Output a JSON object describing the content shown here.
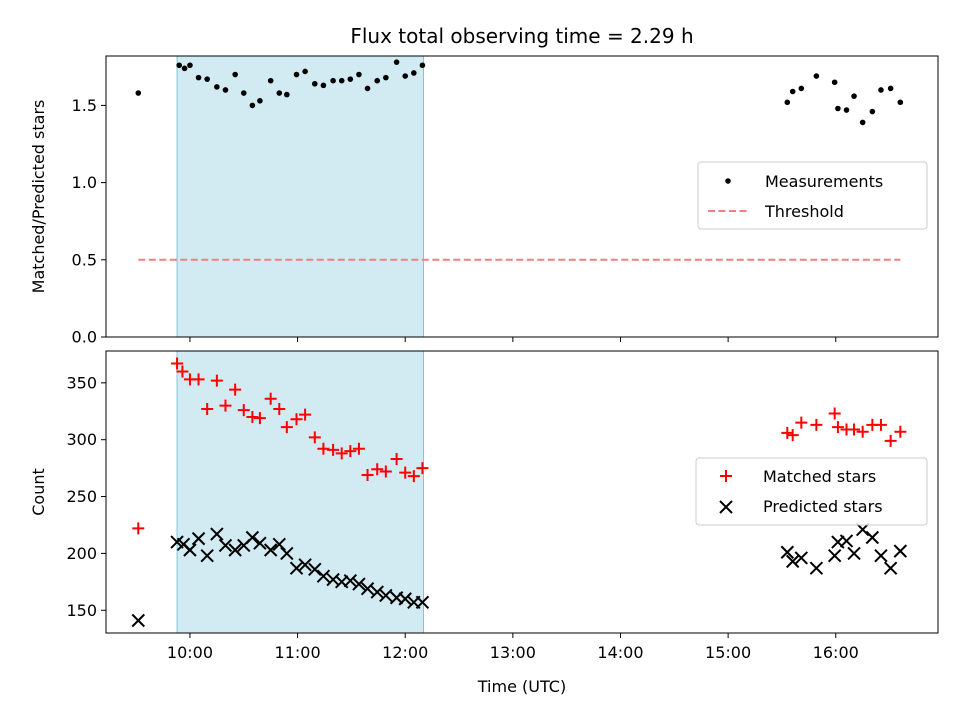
{
  "chart_data": {
    "type": "scatter",
    "title": "Flux total observing time = 2.29 h",
    "xlabel": "Time (UTC)",
    "xlim": [
      9.22,
      16.95
    ],
    "xticks": [
      10,
      11,
      12,
      13,
      14,
      15,
      16
    ],
    "xtick_labels": [
      "10:00",
      "11:00",
      "12:00",
      "13:00",
      "14:00",
      "15:00",
      "16:00"
    ],
    "shaded_span": [
      9.88,
      12.17
    ],
    "shade_color": "#add8e6",
    "top": {
      "ylabel": "Matched/Predicted stars",
      "ylim": [
        0,
        1.82
      ],
      "yticks": [
        0.0,
        0.5,
        1.0,
        1.5
      ],
      "ytick_labels": [
        "0.0",
        "0.5",
        "1.0",
        "1.5"
      ],
      "legend_position": "center-right",
      "threshold": {
        "name": "Threshold",
        "x": [
          9.52,
          16.6
        ],
        "y": 0.5,
        "color": "#f08080"
      },
      "measurements": {
        "name": "Measurements",
        "color": "#000000",
        "x": [
          9.52,
          9.9,
          9.95,
          10.0,
          10.08,
          10.16,
          10.25,
          10.33,
          10.42,
          10.5,
          10.58,
          10.65,
          10.75,
          10.83,
          10.9,
          10.99,
          11.07,
          11.16,
          11.24,
          11.33,
          11.41,
          11.49,
          11.57,
          11.65,
          11.74,
          11.82,
          11.92,
          12.0,
          12.08,
          12.16,
          15.55,
          15.6,
          15.68,
          15.82,
          15.99,
          16.02,
          16.1,
          16.17,
          16.25,
          16.34,
          16.42,
          16.51,
          16.6
        ],
        "y": [
          1.58,
          1.76,
          1.74,
          1.76,
          1.68,
          1.67,
          1.62,
          1.6,
          1.7,
          1.58,
          1.5,
          1.53,
          1.66,
          1.58,
          1.57,
          1.7,
          1.72,
          1.64,
          1.63,
          1.66,
          1.66,
          1.67,
          1.7,
          1.61,
          1.66,
          1.68,
          1.78,
          1.69,
          1.71,
          1.76,
          1.52,
          1.59,
          1.61,
          1.69,
          1.65,
          1.48,
          1.47,
          1.56,
          1.39,
          1.46,
          1.6,
          1.61,
          1.52
        ]
      }
    },
    "bottom": {
      "ylabel": "Count",
      "ylim": [
        130,
        378
      ],
      "yticks": [
        150,
        200,
        250,
        300,
        350
      ],
      "ytick_labels": [
        "150",
        "200",
        "250",
        "300",
        "350"
      ],
      "legend_position": "center-right",
      "series": [
        {
          "name": "Matched stars",
          "marker": "plus",
          "color": "#ff0000",
          "x": [
            9.52,
            9.88,
            9.93,
            10.0,
            10.08,
            10.16,
            10.25,
            10.33,
            10.42,
            10.5,
            10.58,
            10.65,
            10.75,
            10.83,
            10.9,
            10.99,
            11.07,
            11.16,
            11.24,
            11.33,
            11.41,
            11.49,
            11.57,
            11.65,
            11.74,
            11.82,
            11.92,
            12.0,
            12.08,
            12.16,
            15.55,
            15.6,
            15.68,
            15.82,
            15.99,
            16.02,
            16.1,
            16.17,
            16.25,
            16.34,
            16.42,
            16.51,
            16.6
          ],
          "y": [
            222,
            367,
            360,
            353,
            353,
            327,
            352,
            330,
            344,
            326,
            320,
            319,
            336,
            327,
            311,
            318,
            322,
            302,
            292,
            291,
            288,
            290,
            292,
            269,
            274,
            272,
            283,
            271,
            268,
            275,
            306,
            304,
            315,
            313,
            323,
            311,
            309,
            309,
            307,
            313,
            313,
            299,
            307
          ]
        },
        {
          "name": "Predicted stars",
          "marker": "x",
          "color": "#000000",
          "x": [
            9.52,
            9.88,
            9.94,
            10.0,
            10.08,
            10.16,
            10.25,
            10.33,
            10.42,
            10.5,
            10.58,
            10.65,
            10.75,
            10.83,
            10.9,
            10.99,
            11.07,
            11.16,
            11.24,
            11.33,
            11.41,
            11.49,
            11.57,
            11.65,
            11.74,
            11.82,
            11.92,
            12.0,
            12.08,
            12.16,
            15.55,
            15.6,
            15.68,
            15.82,
            15.99,
            16.02,
            16.1,
            16.17,
            16.25,
            16.34,
            16.42,
            16.51,
            16.6
          ],
          "y": [
            141,
            210,
            208,
            203,
            213,
            198,
            217,
            207,
            203,
            207,
            214,
            209,
            203,
            208,
            200,
            187,
            190,
            186,
            180,
            177,
            175,
            176,
            173,
            169,
            166,
            163,
            161,
            160,
            157,
            157,
            201,
            193,
            196,
            187,
            198,
            210,
            211,
            200,
            221,
            214,
            198,
            187,
            202
          ]
        }
      ]
    }
  }
}
